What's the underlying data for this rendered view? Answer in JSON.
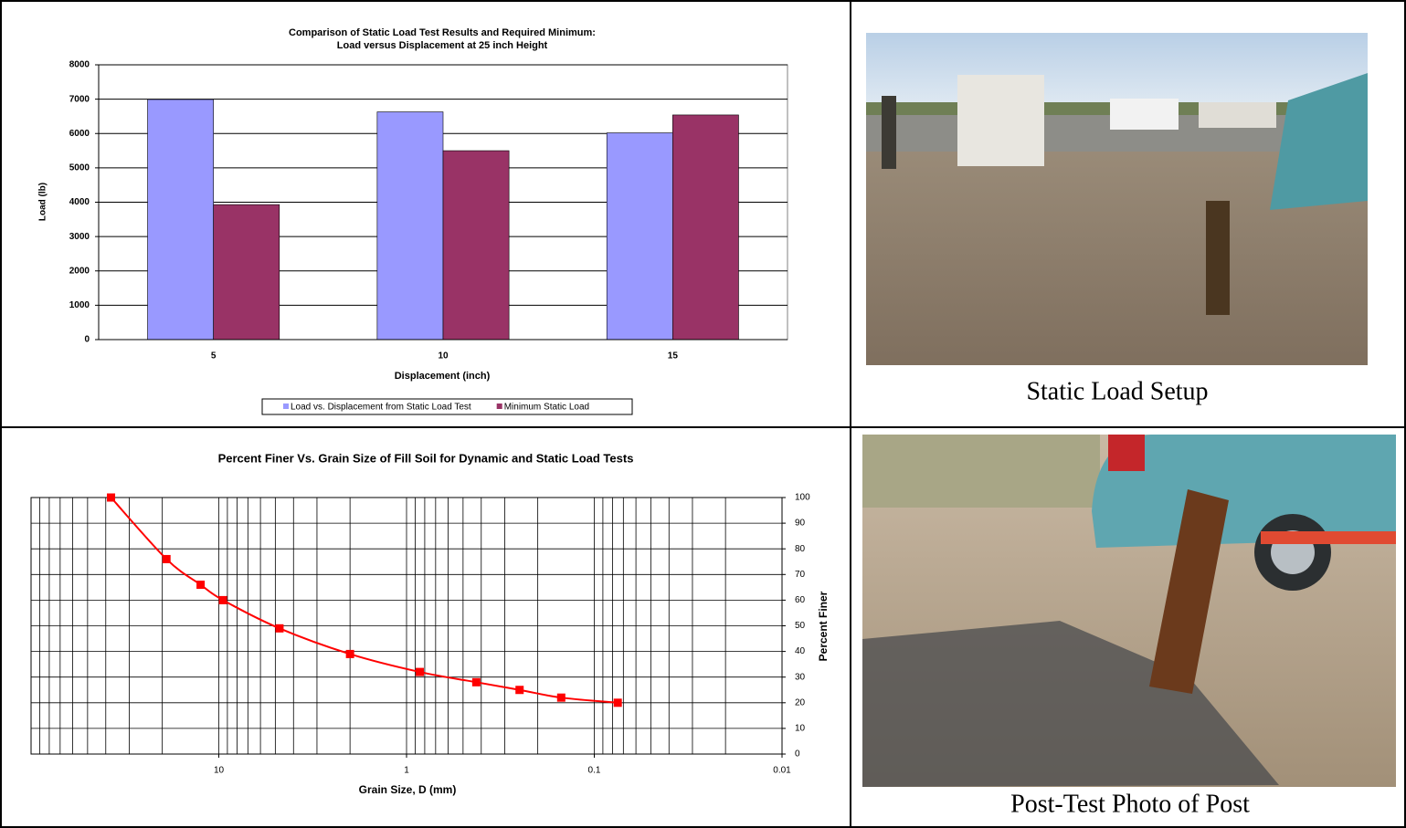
{
  "chart_data": [
    {
      "type": "bar",
      "title": "Comparison of Static Load Test Results and Required Minimum:",
      "subtitle": "Load versus Displacement at 25 inch Height",
      "x_label": "Displacement  (inch)",
      "y_label": "Load (lb)",
      "categories": [
        "5",
        "10",
        "15"
      ],
      "series": [
        {
          "name": "Load vs. Displacement from Static Load Test",
          "color": "#9999ff",
          "values": [
            6990,
            6630,
            6020
          ]
        },
        {
          "name": "Minimum Static Load",
          "color": "#993366",
          "values": [
            3930,
            5500,
            6540
          ]
        }
      ],
      "ylim": [
        0,
        8000
      ],
      "yticks": [
        0,
        1000,
        2000,
        3000,
        4000,
        5000,
        6000,
        7000,
        8000
      ],
      "grid": true,
      "legend": "bottom"
    },
    {
      "type": "line",
      "title": "Percent Finer Vs. Grain Size of Fill Soil for Dynamic and Static Load Tests",
      "x_label": "Grain Size, D (mm)",
      "y_label": "Percent Finer",
      "x": [
        37.5,
        19,
        12.5,
        9.5,
        4.75,
        2,
        0.85,
        0.425,
        0.25,
        0.15,
        0.075
      ],
      "values": [
        100,
        76,
        66,
        60,
        49,
        39,
        32,
        28,
        25,
        22,
        20
      ],
      "color": "#ff0000",
      "marker": "square",
      "xscale": "log",
      "xlim": [
        100,
        0.01
      ],
      "xticks": [
        10,
        1,
        0.1,
        0.01
      ],
      "x_minor_ticks": [
        90,
        80,
        70,
        60,
        50,
        40,
        30,
        20,
        9,
        8,
        7,
        6,
        5,
        4,
        3,
        2,
        0.9,
        0.8,
        0.7,
        0.6,
        0.5,
        0.4,
        0.3,
        0.2,
        0.09,
        0.08,
        0.07,
        0.06,
        0.05,
        0.04,
        0.03,
        0.02
      ],
      "ylim": [
        0,
        100
      ],
      "yticks": [
        0,
        10,
        20,
        30,
        40,
        50,
        60,
        70,
        80,
        90,
        100
      ],
      "y_axis_side": "right",
      "grid": true
    }
  ],
  "captions": [
    "Static Load Setup",
    "Post-Test Photo of Post"
  ]
}
